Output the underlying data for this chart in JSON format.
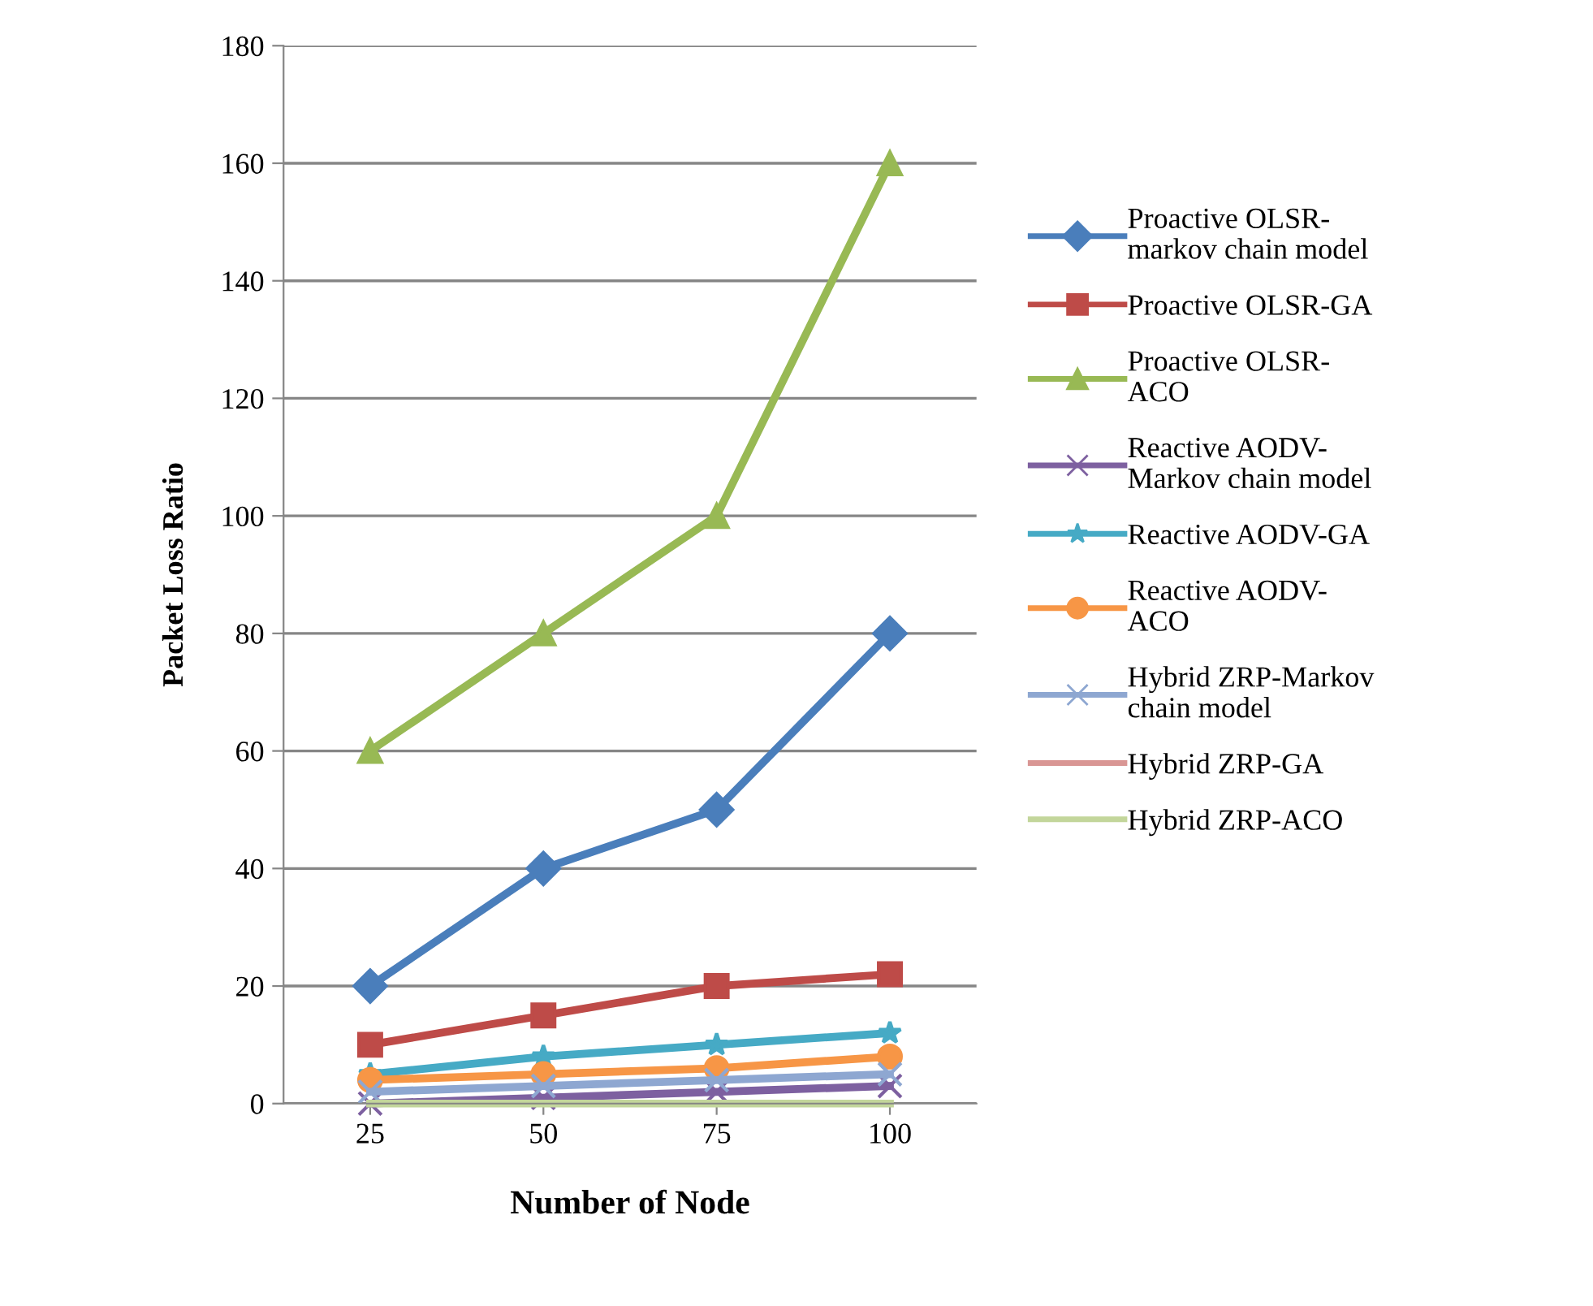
{
  "chart_data": {
    "type": "line",
    "xlabel": "Number of Node",
    "ylabel": "Packet Loss Ratio",
    "categories": [
      "25",
      "50",
      "75",
      "100"
    ],
    "ylim": [
      0,
      180
    ],
    "yticks": [
      0,
      20,
      40,
      60,
      80,
      100,
      120,
      140,
      160,
      180
    ],
    "grid": "y",
    "legend": "right",
    "series": [
      {
        "name": "Proactive OLSR-\nmarkov chain model",
        "color": "#4a7ebb",
        "marker": "diamond",
        "values": [
          20,
          40,
          50,
          80
        ]
      },
      {
        "name": "Proactive OLSR-GA",
        "color": "#be4b48",
        "marker": "square",
        "values": [
          10,
          15,
          20,
          22
        ]
      },
      {
        "name": "Proactive OLSR-\nACO",
        "color": "#98b954",
        "marker": "triangle",
        "values": [
          60,
          80,
          100,
          160
        ]
      },
      {
        "name": "Reactive AODV-\nMarkov chain model",
        "color": "#7d60a0",
        "marker": "cross",
        "values": [
          0,
          1,
          2,
          3
        ]
      },
      {
        "name": "Reactive AODV-GA",
        "color": "#46aac5",
        "marker": "star",
        "values": [
          5,
          8,
          10,
          12
        ]
      },
      {
        "name": "Reactive AODV-\nACO",
        "color": "#f79646",
        "marker": "circle",
        "values": [
          4,
          5,
          6,
          8
        ]
      },
      {
        "name": "Hybrid ZRP-Markov\nchain model",
        "color": "#8ea7d1",
        "marker": "cross",
        "values": [
          2,
          3,
          4,
          5
        ]
      },
      {
        "name": "Hybrid ZRP-GA",
        "color": "#d99694",
        "marker": "none",
        "values": [
          null,
          null,
          null,
          null
        ]
      },
      {
        "name": "Hybrid ZRP-ACO",
        "color": "#c3d69b",
        "marker": "none",
        "values": [
          0,
          0,
          0,
          0
        ]
      }
    ]
  }
}
